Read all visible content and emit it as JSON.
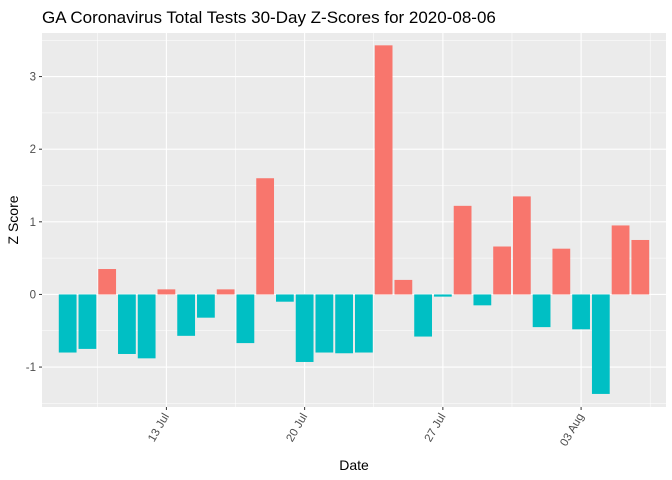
{
  "chart_data": {
    "type": "bar",
    "title": "GA Coronavirus Total Tests 30-Day Z-Scores for 2020-08-06",
    "xlabel": "Date",
    "ylabel": "Z Score",
    "x_tick_labels": [
      "13 Jul",
      "20 Jul",
      "27 Jul",
      "03 Aug"
    ],
    "y_ticks": [
      -1,
      0,
      1,
      2,
      3
    ],
    "ylim": [
      -1.55,
      3.6
    ],
    "grid": true,
    "legend": "none",
    "colors": {
      "positive": "#F8766D",
      "negative": "#00BFC4",
      "panel": "#EBEBEB",
      "grid": "#FFFFFF"
    },
    "categories": [
      "2020-07-08",
      "2020-07-09",
      "2020-07-10",
      "2020-07-11",
      "2020-07-12",
      "2020-07-13",
      "2020-07-14",
      "2020-07-15",
      "2020-07-16",
      "2020-07-17",
      "2020-07-18",
      "2020-07-19",
      "2020-07-20",
      "2020-07-21",
      "2020-07-22",
      "2020-07-23",
      "2020-07-24",
      "2020-07-25",
      "2020-07-26",
      "2020-07-27",
      "2020-07-28",
      "2020-07-29",
      "2020-07-30",
      "2020-07-31",
      "2020-08-01",
      "2020-08-02",
      "2020-08-03",
      "2020-08-04",
      "2020-08-05",
      "2020-08-06"
    ],
    "values": [
      -0.8,
      -0.75,
      0.35,
      -0.82,
      -0.88,
      0.07,
      -0.57,
      -0.32,
      0.07,
      -0.67,
      1.6,
      -0.1,
      -0.93,
      -0.8,
      -0.81,
      -0.8,
      3.43,
      0.2,
      -0.58,
      -0.03,
      1.22,
      -0.15,
      0.66,
      1.35,
      -0.45,
      0.63,
      -0.48,
      -1.37,
      0.95,
      0.75
    ]
  }
}
